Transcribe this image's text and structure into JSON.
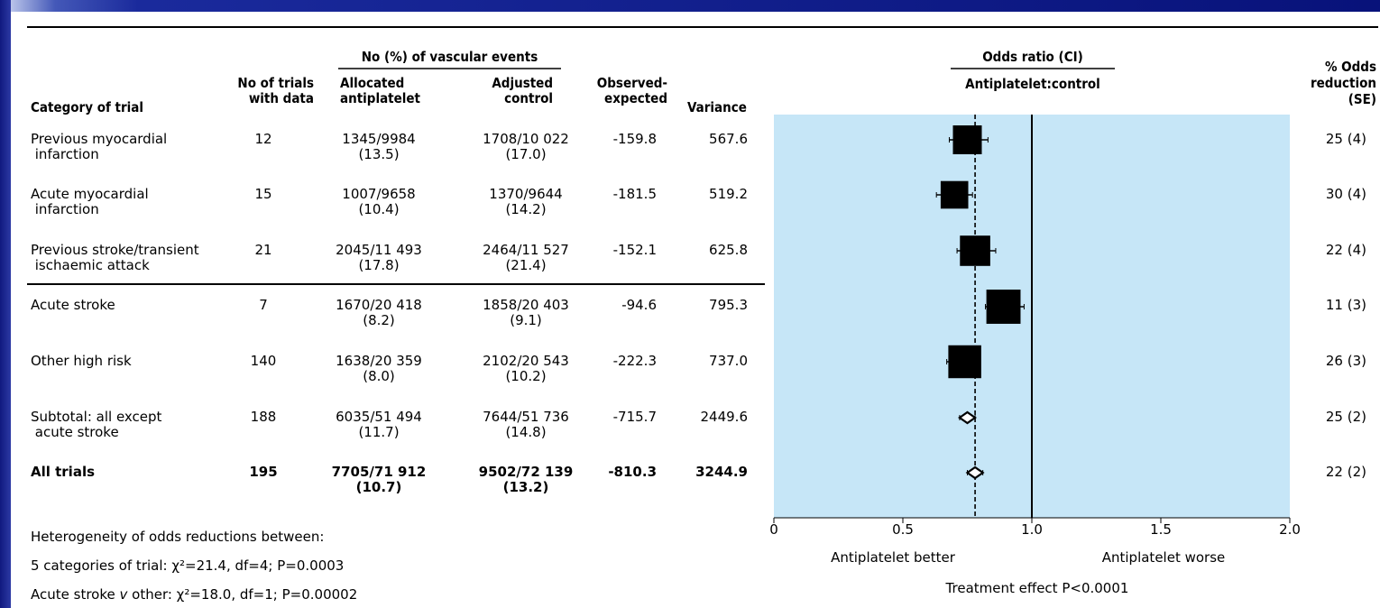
{
  "header": {
    "group_title": "No (%) of vascular events",
    "col_category": "Category of trial",
    "col_trials": "No of trials\nwith data",
    "col_allocated": "Allocated\nantiplatelet",
    "col_adjusted": "Adjusted\ncontrol",
    "col_oe": "Observed-\nexpected",
    "col_variance": "Variance",
    "or_title": "Odds ratio (CI)",
    "or_subtitle": "Antiplatelet:control",
    "col_reduction": "% Odds\nreduction\n(SE)"
  },
  "rows": [
    {
      "category": "Previous myocardial\n infarction",
      "trials": "12",
      "allocated": "1345/9984\n(13.5)",
      "adjusted": "1708/10 022\n(17.0)",
      "oe": "-159.8",
      "variance": "567.6",
      "reduction": "25 (4)",
      "bold": false
    },
    {
      "category": "Acute myocardial\n infarction",
      "trials": "15",
      "allocated": "1007/9658\n(10.4)",
      "adjusted": "1370/9644\n(14.2)",
      "oe": "-181.5",
      "variance": "519.2",
      "reduction": "30 (4)",
      "bold": false
    },
    {
      "category": "Previous stroke/transient\n ischaemic attack",
      "trials": "21",
      "allocated": "2045/11 493\n(17.8)",
      "adjusted": "2464/11 527\n(21.4)",
      "oe": "-152.1",
      "variance": "625.8",
      "reduction": "22 (4)",
      "bold": false
    },
    {
      "category": "Acute stroke",
      "trials": "7",
      "allocated": "1670/20 418\n(8.2)",
      "adjusted": "1858/20 403\n(9.1)",
      "oe": "-94.6",
      "variance": "795.3",
      "reduction": "11 (3)",
      "bold": false
    },
    {
      "category": "Other high risk",
      "trials": "140",
      "allocated": "1638/20 359\n(8.0)",
      "adjusted": "2102/20 543\n(10.2)",
      "oe": "-222.3",
      "variance": "737.0",
      "reduction": "26 (3)",
      "bold": false
    },
    {
      "category": "Subtotal: all except\n acute stroke",
      "trials": "188",
      "allocated": "6035/51 494\n(11.7)",
      "adjusted": "7644/51 736\n(14.8)",
      "oe": "-715.7",
      "variance": "2449.6",
      "reduction": "25 (2)",
      "bold": false
    },
    {
      "category": "All trials",
      "trials": "195",
      "allocated": "7705/71 912\n(10.7)",
      "adjusted": "9502/72 139\n(13.2)",
      "oe": "-810.3",
      "variance": "3244.9",
      "reduction": "22 (2)",
      "bold": true
    }
  ],
  "footer": {
    "heterogeneity_title": "Heterogeneity of odds reductions between:",
    "heterogeneity_line1": "5 categories of trial: χ²=21.4, df=4; P=0.0003",
    "heterogeneity_line2_pre": "Acute stroke ",
    "heterogeneity_line2_v": "v",
    "heterogeneity_line2_post": " other: χ²=18.0, df=1; P=0.00002"
  },
  "chart_data": {
    "type": "forest",
    "title": "Odds ratio (CI)",
    "subtitle": "Antiplatelet:control",
    "xlim": [
      0,
      2.0
    ],
    "xticks": [
      0,
      0.5,
      1.0,
      1.5,
      2.0
    ],
    "xtick_labels": [
      "0",
      "0.5",
      "1.0",
      "1.5",
      "2.0"
    ],
    "null_line": 1.0,
    "pooled_line": 0.78,
    "left_label": "Antiplatelet better",
    "right_label": "Antiplatelet worse",
    "bottom_note": "Treatment effect P<0.0001",
    "plot_bg": "#c6e6f7",
    "points": [
      {
        "label": "Previous myocardial infarction",
        "or": 0.75,
        "ci_low": 0.68,
        "ci_high": 0.83,
        "marker": "square",
        "weight": 567.6
      },
      {
        "label": "Acute myocardial infarction",
        "or": 0.7,
        "ci_low": 0.63,
        "ci_high": 0.77,
        "marker": "square",
        "weight": 519.2
      },
      {
        "label": "Previous stroke/transient ischaemic attack",
        "or": 0.78,
        "ci_low": 0.71,
        "ci_high": 0.86,
        "marker": "square",
        "weight": 625.8
      },
      {
        "label": "Acute stroke",
        "or": 0.89,
        "ci_low": 0.82,
        "ci_high": 0.97,
        "marker": "square",
        "weight": 795.3
      },
      {
        "label": "Other high risk",
        "or": 0.74,
        "ci_low": 0.67,
        "ci_high": 0.8,
        "marker": "square",
        "weight": 737.0
      },
      {
        "label": "Subtotal: all except acute stroke",
        "or": 0.75,
        "ci_low": 0.72,
        "ci_high": 0.78,
        "marker": "diamond",
        "weight": 2449.6
      },
      {
        "label": "All trials",
        "or": 0.78,
        "ci_low": 0.75,
        "ci_high": 0.81,
        "marker": "diamond",
        "weight": 3244.9
      }
    ]
  }
}
